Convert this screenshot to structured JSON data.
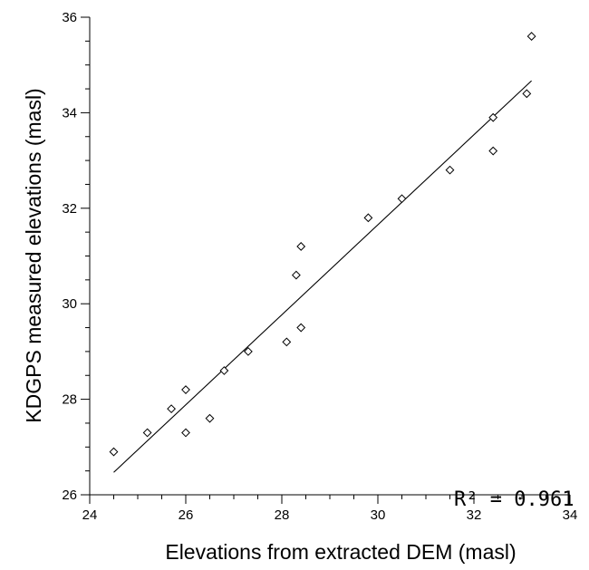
{
  "chart_data": {
    "type": "scatter",
    "title": "",
    "xlabel": "Elevations from extracted DEM (masl)",
    "ylabel": "KDGPS measured elevations (masl)",
    "xlim": [
      24,
      34
    ],
    "ylim": [
      26,
      36
    ],
    "x_ticks": [
      24,
      26,
      28,
      30,
      32,
      34
    ],
    "y_ticks": [
      26,
      28,
      30,
      32,
      34,
      36
    ],
    "minor_step": 0.5,
    "grid": false,
    "legend": "none",
    "marker": "diamond-open",
    "annotation": "R² = 0.961",
    "points": [
      {
        "x": 24.5,
        "y": 26.9
      },
      {
        "x": 25.2,
        "y": 27.3
      },
      {
        "x": 25.7,
        "y": 27.8
      },
      {
        "x": 26.0,
        "y": 28.2
      },
      {
        "x": 26.0,
        "y": 27.3
      },
      {
        "x": 26.5,
        "y": 27.6
      },
      {
        "x": 26.8,
        "y": 28.6
      },
      {
        "x": 27.3,
        "y": 29.0
      },
      {
        "x": 28.1,
        "y": 29.2
      },
      {
        "x": 28.3,
        "y": 30.6
      },
      {
        "x": 28.4,
        "y": 31.2
      },
      {
        "x": 28.4,
        "y": 29.5
      },
      {
        "x": 29.8,
        "y": 31.8
      },
      {
        "x": 30.5,
        "y": 32.2
      },
      {
        "x": 31.5,
        "y": 32.8
      },
      {
        "x": 32.4,
        "y": 33.9
      },
      {
        "x": 32.4,
        "y": 33.2
      },
      {
        "x": 33.1,
        "y": 34.4
      },
      {
        "x": 33.2,
        "y": 35.6
      }
    ],
    "fit_line": {
      "x": [
        24.5,
        33.2
      ],
      "y": [
        26.47,
        34.67
      ]
    },
    "colors": {
      "marker": "#000000",
      "line": "#000000",
      "axis": "#000000"
    }
  }
}
